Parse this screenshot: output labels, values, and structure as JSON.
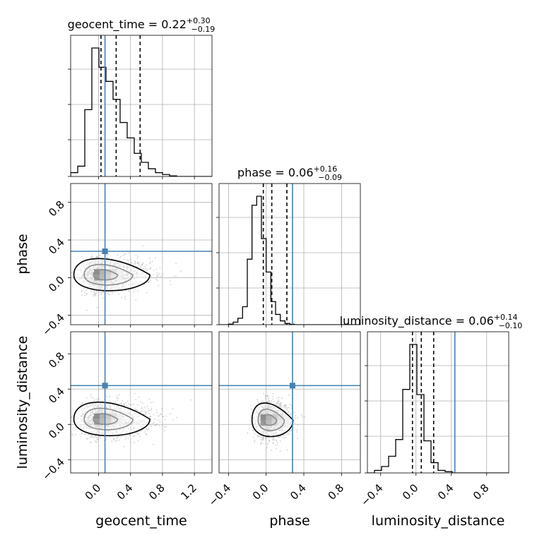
{
  "chart_data": {
    "type": "corner",
    "parameters": [
      "geocent_time",
      "phase",
      "luminosity_distance"
    ],
    "truths": [
      0.08,
      0.28,
      0.44
    ],
    "titles": [
      {
        "name": "geocent_time",
        "median": "0.22",
        "plus": "+0.30",
        "minus": "−0.19"
      },
      {
        "name": "phase",
        "median": "0.06",
        "plus": "+0.16",
        "minus": "−0.09"
      },
      {
        "name": "luminosity_distance",
        "median": "0.06",
        "plus": "+0.14",
        "minus": "−0.10"
      }
    ],
    "quantiles": [
      [
        0.03,
        0.22,
        0.52
      ],
      [
        -0.03,
        0.06,
        0.22
      ],
      [
        -0.04,
        0.06,
        0.2
      ]
    ],
    "ranges": [
      [
        -0.35,
        1.42
      ],
      [
        -0.5,
        1.0
      ],
      [
        -0.55,
        1.05
      ]
    ],
    "ticks": [
      [
        "0.0",
        "0.4",
        "0.8",
        "1.2"
      ],
      [
        "−0.4",
        "0.0",
        "0.4",
        "0.8"
      ],
      [
        "−0.4",
        "0.0",
        "0.4",
        "0.8"
      ]
    ],
    "tick_values": [
      [
        0.0,
        0.4,
        0.8,
        1.2
      ],
      [
        -0.4,
        0.0,
        0.4,
        0.8
      ],
      [
        -0.4,
        0.0,
        0.4,
        0.8
      ]
    ],
    "histograms": [
      {
        "edges_start": -0.35,
        "bin_width": 0.0885,
        "counts": [
          0.03,
          0.08,
          0.52,
          1.0,
          0.85,
          0.74,
          0.6,
          0.42,
          0.3,
          0.18,
          0.11,
          0.06,
          0.03,
          0.015,
          0.005,
          0.0,
          0.0,
          0.0,
          0.0,
          0.0
        ]
      },
      {
        "edges_start": -0.5,
        "bin_width": 0.05,
        "counts": [
          0.0,
          0.0,
          0.005,
          0.02,
          0.05,
          0.14,
          0.51,
          0.93,
          1.0,
          0.67,
          0.41,
          0.18,
          0.08,
          0.03,
          0.01,
          0.003,
          0.0,
          0.0,
          0.0,
          0.0,
          0.0,
          0.0,
          0.0,
          0.0,
          0.0,
          0.0,
          0.0,
          0.0,
          0.0,
          0.0
        ]
      },
      {
        "edges_start": -0.55,
        "bin_width": 0.08,
        "counts": [
          0.0,
          0.02,
          0.05,
          0.13,
          0.26,
          0.65,
          1.0,
          0.61,
          0.25,
          0.08,
          0.02,
          0.01,
          0.0,
          0.0,
          0.0,
          0.0,
          0.0,
          0.0,
          0.0,
          0.0
        ]
      }
    ],
    "scatter_pairs": [
      {
        "x": "geocent_time",
        "y": "phase",
        "center": [
          0.05,
          0.03
        ],
        "spread": [
          0.18,
          0.09
        ],
        "skew": 0.35
      },
      {
        "x": "geocent_time",
        "y": "luminosity_distance",
        "center": [
          0.05,
          0.06
        ],
        "spread": [
          0.18,
          0.1
        ],
        "skew": 0.35
      },
      {
        "x": "phase",
        "y": "luminosity_distance",
        "center": [
          0.03,
          0.05
        ],
        "spread": [
          0.09,
          0.1
        ],
        "skew": 0.15
      }
    ],
    "grid": true,
    "colors": {
      "truth": "#4682b4",
      "line": "#000000",
      "grid": "#b0b0b0",
      "points": "#9a9a9a"
    }
  }
}
